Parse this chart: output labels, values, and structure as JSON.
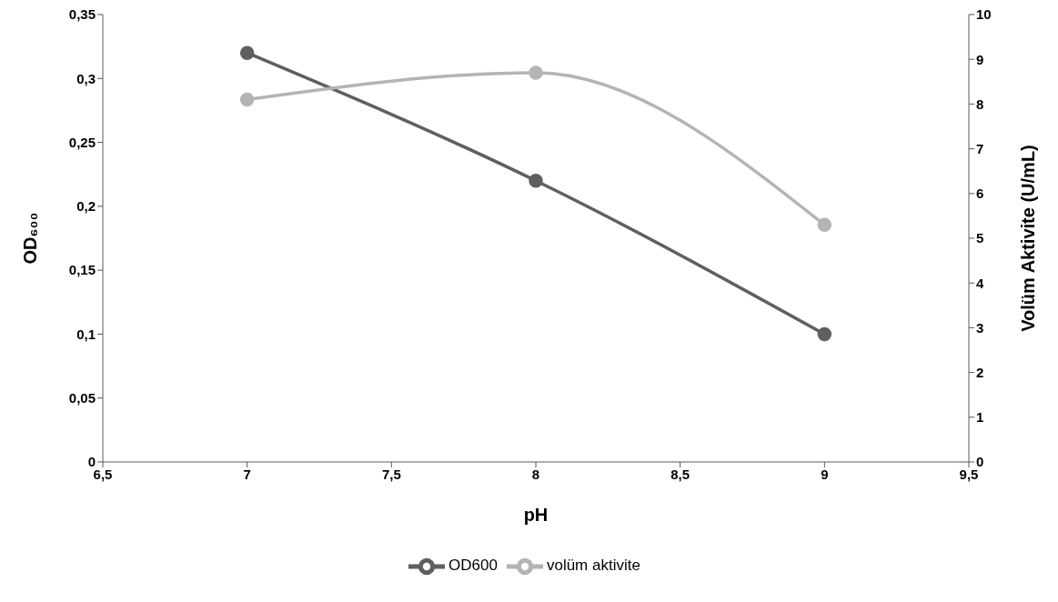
{
  "chart_data": {
    "type": "line",
    "xlabel": "pH",
    "ylabel": "OD₆₀₀",
    "y2label": "Volüm Aktivite (U/mL)",
    "x": [
      7,
      8,
      9
    ],
    "series": [
      {
        "name": "OD600",
        "color": "#5f5f5f",
        "values": [
          0.32,
          0.22,
          0.1
        ]
      },
      {
        "name": "volüm aktivite",
        "color": "#b4b4b4",
        "values": [
          8.1,
          8.7,
          5.3
        ],
        "axis": "y2"
      }
    ],
    "xlim": [
      6.5,
      9.5
    ],
    "xticks": [
      {
        "value": 6.5,
        "label": "6,5"
      },
      7,
      {
        "value": 7.5,
        "label": "7,5"
      },
      8,
      {
        "value": 8.5,
        "label": "8,5"
      },
      9,
      {
        "value": 9.5,
        "label": "9,5"
      }
    ],
    "ylim": [
      0,
      0.35
    ],
    "yticks": [
      0,
      {
        "value": 0.05,
        "label": "0,05"
      },
      {
        "value": 0.1,
        "label": "0,1"
      },
      {
        "value": 0.15,
        "label": "0,15"
      },
      {
        "value": 0.2,
        "label": "0,2"
      },
      {
        "value": 0.25,
        "label": "0,25"
      },
      {
        "value": 0.3,
        "label": "0,3"
      },
      {
        "value": 0.35,
        "label": "0,35"
      }
    ],
    "y2lim": [
      0,
      10
    ],
    "y2ticks": [
      0,
      1,
      2,
      3,
      4,
      5,
      6,
      7,
      8,
      9,
      10
    ],
    "grid": false,
    "legend": "bottom",
    "marker": "circle",
    "line_style": "solid"
  }
}
